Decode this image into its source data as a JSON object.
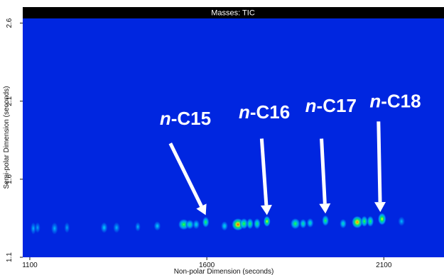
{
  "chart_data": {
    "type": "heatmap",
    "title": "Masses: TIC",
    "xlabel": "Non-polar Dimension (seconds)",
    "ylabel": "Semi-polar Dimension (seconds)",
    "xlim": [
      1080,
      2270
    ],
    "ylim": [
      1.1,
      2.63
    ],
    "x_ticks": [
      {
        "value": 1100,
        "label": "1100"
      },
      {
        "value": 1600,
        "label": "1600"
      },
      {
        "value": 2100,
        "label": "2100"
      }
    ],
    "y_ticks": [
      {
        "value": 1.1,
        "label": "1.1"
      },
      {
        "value": 1.6,
        "label": "1.6"
      },
      {
        "value": 2.1,
        "label": "2.1"
      },
      {
        "value": 2.6,
        "label": "2.6"
      }
    ],
    "colormap": [
      "#0026e0",
      "#00c0ff",
      "#00ff60",
      "#ffff00",
      "#ff2000"
    ],
    "background_color": "#0026e0",
    "peaks": [
      {
        "x": 1110,
        "y": 1.285,
        "intensity": 0.25,
        "sx": 4,
        "sy": 9
      },
      {
        "x": 1122,
        "y": 1.29,
        "intensity": 0.22,
        "sx": 4,
        "sy": 8
      },
      {
        "x": 1170,
        "y": 1.285,
        "intensity": 0.25,
        "sx": 5,
        "sy": 9
      },
      {
        "x": 1205,
        "y": 1.29,
        "intensity": 0.22,
        "sx": 4,
        "sy": 8
      },
      {
        "x": 1310,
        "y": 1.29,
        "intensity": 0.3,
        "sx": 5,
        "sy": 8
      },
      {
        "x": 1345,
        "y": 1.29,
        "intensity": 0.25,
        "sx": 5,
        "sy": 8
      },
      {
        "x": 1405,
        "y": 1.295,
        "intensity": 0.25,
        "sx": 4,
        "sy": 7
      },
      {
        "x": 1460,
        "y": 1.3,
        "intensity": 0.3,
        "sx": 5,
        "sy": 7
      },
      {
        "x": 1535,
        "y": 1.31,
        "intensity": 0.6,
        "sx": 8,
        "sy": 8
      },
      {
        "x": 1552,
        "y": 1.31,
        "intensity": 0.45,
        "sx": 6,
        "sy": 7
      },
      {
        "x": 1570,
        "y": 1.31,
        "intensity": 0.35,
        "sx": 5,
        "sy": 7
      },
      {
        "x": 1597,
        "y": 1.325,
        "intensity": 0.55,
        "sx": 5,
        "sy": 8
      },
      {
        "x": 1650,
        "y": 1.3,
        "intensity": 0.35,
        "sx": 5,
        "sy": 7
      },
      {
        "x": 1688,
        "y": 1.31,
        "intensity": 1.0,
        "sx": 9,
        "sy": 9
      },
      {
        "x": 1705,
        "y": 1.315,
        "intensity": 0.6,
        "sx": 6,
        "sy": 8
      },
      {
        "x": 1722,
        "y": 1.315,
        "intensity": 0.55,
        "sx": 5,
        "sy": 8
      },
      {
        "x": 1742,
        "y": 1.315,
        "intensity": 0.5,
        "sx": 5,
        "sy": 8
      },
      {
        "x": 1770,
        "y": 1.33,
        "intensity": 0.75,
        "sx": 5,
        "sy": 8
      },
      {
        "x": 1850,
        "y": 1.315,
        "intensity": 0.55,
        "sx": 7,
        "sy": 8
      },
      {
        "x": 1872,
        "y": 1.315,
        "intensity": 0.45,
        "sx": 5,
        "sy": 7
      },
      {
        "x": 1892,
        "y": 1.32,
        "intensity": 0.4,
        "sx": 5,
        "sy": 7
      },
      {
        "x": 1935,
        "y": 1.335,
        "intensity": 0.55,
        "sx": 5,
        "sy": 8
      },
      {
        "x": 1985,
        "y": 1.315,
        "intensity": 0.4,
        "sx": 5,
        "sy": 7
      },
      {
        "x": 2025,
        "y": 1.325,
        "intensity": 0.95,
        "sx": 8,
        "sy": 9
      },
      {
        "x": 2045,
        "y": 1.33,
        "intensity": 0.6,
        "sx": 5,
        "sy": 8
      },
      {
        "x": 2062,
        "y": 1.33,
        "intensity": 0.55,
        "sx": 5,
        "sy": 8
      },
      {
        "x": 2095,
        "y": 1.345,
        "intensity": 0.75,
        "sx": 6,
        "sy": 9
      },
      {
        "x": 2150,
        "y": 1.33,
        "intensity": 0.25,
        "sx": 5,
        "sy": 7
      }
    ],
    "annotations": [
      {
        "prefix": "n",
        "label": "-C15",
        "text_x": 1467,
        "text_y": 1.95,
        "arrow_from": [
          1497,
          1.83
        ],
        "arrow_to": [
          1597,
          1.37
        ]
      },
      {
        "prefix": "n",
        "label": "-C16",
        "text_x": 1690,
        "text_y": 1.99,
        "arrow_from": [
          1755,
          1.86
        ],
        "arrow_to": [
          1770,
          1.37
        ]
      },
      {
        "prefix": "n",
        "label": "-C17",
        "text_x": 1878,
        "text_y": 2.03,
        "arrow_from": [
          1924,
          1.86
        ],
        "arrow_to": [
          1935,
          1.38
        ]
      },
      {
        "prefix": "n",
        "label": "-C18",
        "text_x": 2060,
        "text_y": 2.06,
        "arrow_from": [
          2085,
          1.97
        ],
        "arrow_to": [
          2090,
          1.39
        ]
      }
    ]
  }
}
